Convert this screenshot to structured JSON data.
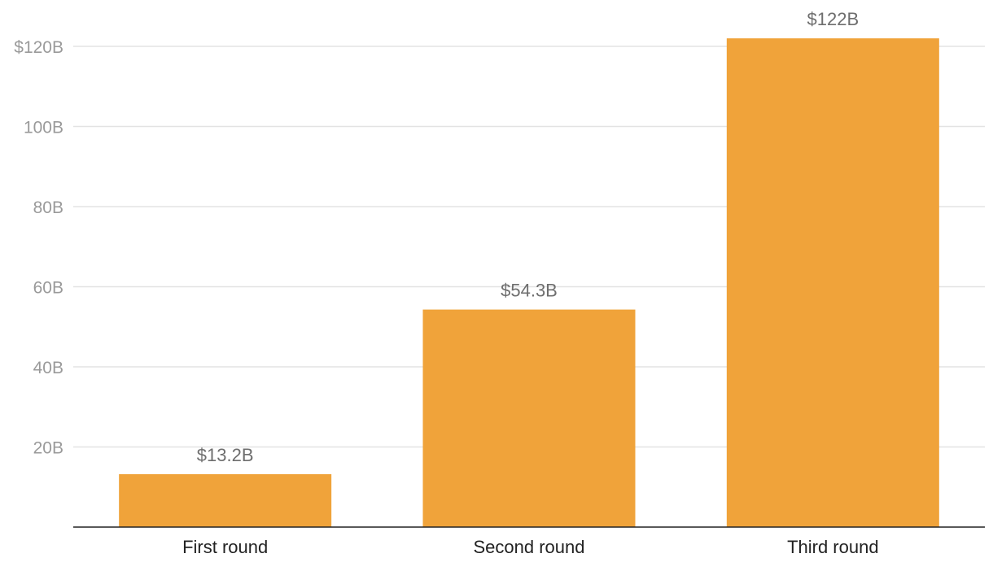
{
  "chart_data": {
    "type": "bar",
    "categories": [
      "First round",
      "Second round",
      "Third round"
    ],
    "values": [
      13.2,
      54.3,
      122
    ],
    "data_labels": [
      "$13.2B",
      "$54.3B",
      "$122B"
    ],
    "y_ticks": [
      20,
      40,
      60,
      80,
      100,
      120
    ],
    "y_tick_labels": [
      "20B",
      "40B",
      "60B",
      "80B",
      "100B",
      "$120B"
    ],
    "ylim": [
      0,
      120
    ],
    "grid": true,
    "bar_color": "#f0a33a",
    "title": "",
    "xlabel": "",
    "ylabel": ""
  }
}
